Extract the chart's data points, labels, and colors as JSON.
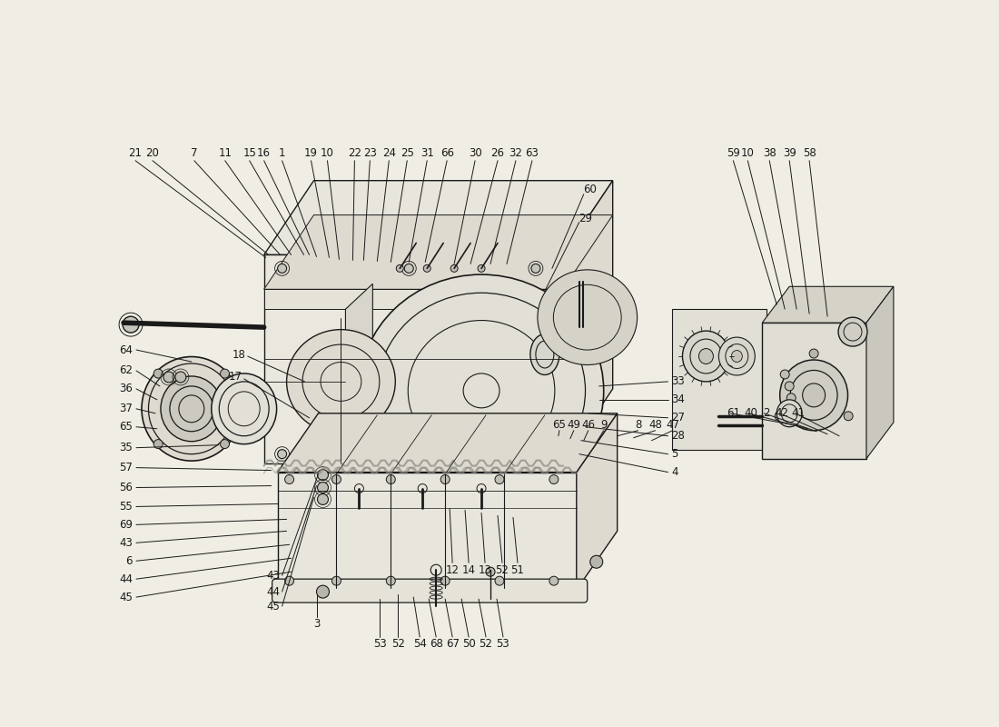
{
  "bg_color": "#f0ede4",
  "line_color": "#1a1a1a",
  "fig_width": 11.0,
  "fig_height": 8.0,
  "dpi": 100
}
